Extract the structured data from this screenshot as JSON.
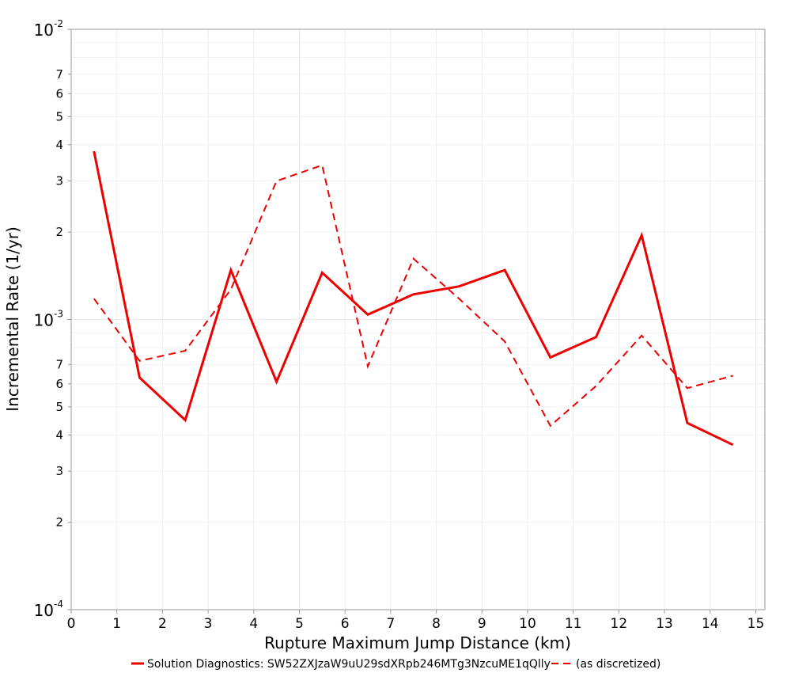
{
  "chart_data": {
    "type": "line",
    "title": "",
    "xlabel": "Rupture Maximum Jump Distance (km)",
    "ylabel": "Incremental Rate (1/yr)",
    "xlim": [
      0,
      15.2
    ],
    "ylim": [
      0.0001,
      0.01
    ],
    "yscale": "log",
    "grid": true,
    "legend_position": "bottom",
    "x_ticks": [
      "0",
      "1",
      "2",
      "3",
      "4",
      "5",
      "6",
      "7",
      "8",
      "9",
      "10",
      "11",
      "12",
      "13",
      "14",
      "15"
    ],
    "y_major_ticks": [
      {
        "base": "10",
        "exp": "-4"
      },
      {
        "base": "10",
        "exp": "-3"
      },
      {
        "base": "10",
        "exp": "-2"
      }
    ],
    "y_minor_tick_labels": [
      "2",
      "3",
      "4",
      "5",
      "6",
      "7"
    ],
    "series": [
      {
        "name": "Solution Diagnostics: SW52ZXJzaW9uU29sdXRpb246MTg3NzcuME1qQlly",
        "style": "solid",
        "color": "#ee0000",
        "x": [
          0.5,
          1.5,
          2.5,
          3.5,
          4.5,
          5.5,
          6.5,
          7.5,
          8.5,
          9.5,
          10.5,
          11.5,
          12.5,
          13.5,
          14.5
        ],
        "y": [
          0.0038,
          0.00063,
          0.00045,
          0.00148,
          0.00061,
          0.00145,
          0.00104,
          0.00122,
          0.0013,
          0.00148,
          0.00074,
          0.00087,
          0.00195,
          0.00044,
          0.00037
        ]
      },
      {
        "name": "(as discretized)",
        "style": "dashed",
        "color": "#ee0000",
        "x": [
          0.5,
          1.5,
          2.5,
          3.5,
          4.5,
          5.5,
          6.5,
          7.5,
          8.5,
          9.5,
          10.5,
          11.5,
          12.5,
          13.5,
          14.5
        ],
        "y": [
          0.00118,
          0.00072,
          0.00078,
          0.00127,
          0.003,
          0.0034,
          0.00069,
          0.00162,
          0.00118,
          0.00084,
          0.00043,
          0.00059,
          0.00088,
          0.00058,
          0.00064
        ]
      }
    ]
  }
}
